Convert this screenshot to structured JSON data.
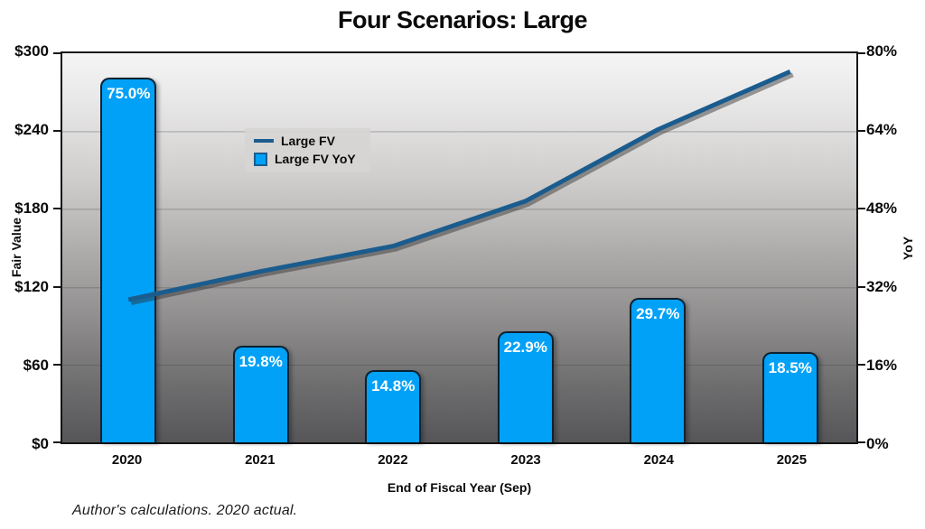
{
  "title": "Four Scenarios: Large",
  "footnote": "Author's calculations. 2020 actual.",
  "legend": {
    "items": [
      {
        "label": "Large FV",
        "swatch": "line"
      },
      {
        "label": "Large FV YoY",
        "swatch": "square"
      }
    ]
  },
  "chart_data": {
    "type": "combo",
    "categories": [
      "2020",
      "2021",
      "2022",
      "2023",
      "2024",
      "2025"
    ],
    "series": [
      {
        "name": "Large FV",
        "type": "line",
        "axis": "left",
        "values": [
          110,
          131.8,
          151.3,
          186.0,
          241.2,
          285.9
        ]
      },
      {
        "name": "Large FV YoY",
        "type": "bar",
        "axis": "right",
        "values": [
          75.0,
          19.8,
          14.8,
          22.9,
          29.7,
          18.5
        ],
        "labels": [
          "75.0%",
          "19.8%",
          "14.8%",
          "22.9%",
          "29.7%",
          "18.5%"
        ]
      }
    ],
    "xlabel": "End of Fiscal Year (Sep)",
    "ylabel_left": "Fair Value",
    "ylabel_right": "YoY",
    "ylim_left": [
      0,
      300
    ],
    "ylim_right": [
      0,
      80
    ],
    "yticks_left": [
      "$300",
      "$240",
      "$180",
      "$120",
      "$60",
      "$0"
    ],
    "yticks_right": [
      "80%",
      "64%",
      "48%",
      "32%",
      "16%",
      "0%"
    ],
    "grid": "horizontal-faint",
    "legend_position": "top-left-inside",
    "plot_background": "vertical gray gradient light-to-dark"
  },
  "colors": {
    "line": "#1b5c8e",
    "line_shadow": "rgba(45,45,45,0.45)",
    "bar_fill": "#00a1f7",
    "bar_border": "#0d2130",
    "bar_label_text": "#ffffff",
    "gradient_top": "#f5f5f5",
    "gradient_bottom": "#565558",
    "legend_background": "#d6d5d4"
  }
}
